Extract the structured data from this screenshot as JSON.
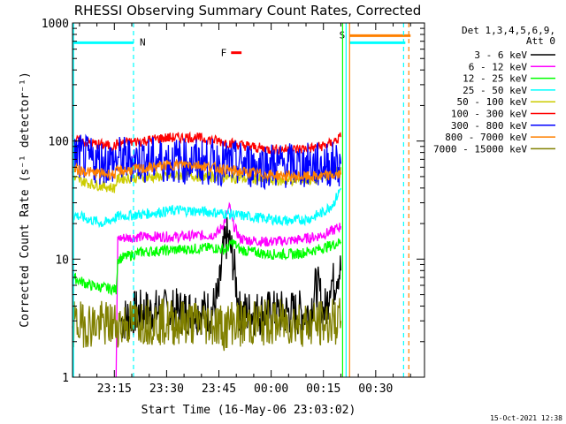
{
  "chart_data": {
    "type": "line",
    "title": "RHESSI Observing Summary Count Rates, Corrected",
    "xlabel": "Start Time (16-May-06 23:03:02)",
    "ylabel": "Corrected Count Rate (s⁻¹ detector⁻¹)",
    "y_scale": "log",
    "ylim": [
      1,
      1000
    ],
    "xlim_minutes_after_start": [
      0,
      101
    ],
    "x_ticks": [
      {
        "label": "23:15",
        "min": 12
      },
      {
        "label": "23:30",
        "min": 27
      },
      {
        "label": "23:45",
        "min": 42
      },
      {
        "label": "00:00",
        "min": 57
      },
      {
        "label": "00:15",
        "min": 72
      },
      {
        "label": "00:30",
        "min": 87
      }
    ],
    "y_ticks": [
      {
        "label": "1",
        "value": 1
      },
      {
        "label": "10",
        "value": 10
      },
      {
        "label": "100",
        "value": 100
      },
      {
        "label": "1000",
        "value": 1000
      }
    ],
    "legend_header": [
      "Det 1,3,4,5,6,9,",
      "Att 0"
    ],
    "series": [
      {
        "name": "3 - 6 keV",
        "color": "#000000",
        "x": [
          14,
          18,
          24,
          30,
          36,
          40,
          42,
          43,
          44,
          45,
          46,
          47,
          48,
          50,
          52,
          56,
          62,
          68,
          70,
          71,
          72,
          73,
          74,
          75,
          76,
          77
        ],
        "y": [
          3,
          3.5,
          3.6,
          3.6,
          3.6,
          3.6,
          5,
          10,
          15,
          14,
          10,
          6,
          3.5,
          3.5,
          3.5,
          3.5,
          3.5,
          3.5,
          6,
          5,
          3.5,
          4,
          7,
          6,
          8,
          8
        ]
      },
      {
        "name": "6 - 12 keV",
        "color": "#ff00ff",
        "x": [
          12.5,
          13,
          20,
          30,
          40,
          42,
          44,
          45,
          46,
          48,
          50,
          56,
          64,
          70,
          74,
          77
        ],
        "y": [
          1,
          15,
          15.5,
          15.5,
          16,
          17,
          22,
          28,
          20,
          15,
          14.5,
          14,
          14.5,
          15.5,
          17,
          19
        ]
      },
      {
        "name": "12 - 25 keV",
        "color": "#00ff00",
        "x": [
          0,
          5,
          12.5,
          13,
          20,
          30,
          40,
          44,
          46,
          48,
          56,
          64,
          70,
          74,
          77
        ],
        "y": [
          7,
          6,
          5.5,
          10,
          11.5,
          12,
          12.5,
          12,
          14,
          12,
          11,
          11,
          12,
          13,
          14
        ]
      },
      {
        "name": "25 - 50 keV",
        "color": "#00ffff",
        "x": [
          0,
          4,
          9,
          13,
          20,
          30,
          40,
          50,
          56,
          62,
          68,
          72,
          75,
          77
        ],
        "y": [
          24,
          22,
          20,
          23,
          24,
          26,
          25,
          23,
          22,
          21,
          22,
          25,
          30,
          40
        ]
      },
      {
        "name": "50 - 100 keV",
        "color": "#cccc00",
        "x": [
          0,
          6,
          12,
          13,
          20,
          30,
          40,
          50,
          60,
          70,
          77
        ],
        "y": [
          48,
          43,
          40,
          48,
          49,
          51,
          50,
          48,
          46,
          47,
          60
        ]
      },
      {
        "name": "100 - 300 keV",
        "color": "#ff0000",
        "x": [
          0,
          6,
          12,
          13,
          20,
          26,
          34,
          40,
          46,
          56,
          64,
          70,
          74,
          77
        ],
        "y": [
          102,
          95,
          90,
          95,
          100,
          106,
          108,
          102,
          95,
          85,
          85,
          88,
          95,
          108
        ]
      },
      {
        "name": "300 - 800 keV",
        "color": "#0000ff",
        "x": [
          0,
          6,
          12,
          13,
          20,
          30,
          40,
          50,
          60,
          70,
          77
        ],
        "y": [
          76,
          68,
          66,
          70,
          70,
          68,
          66,
          63,
          62,
          62,
          64
        ]
      },
      {
        "name": "800 - 7000 keV",
        "color": "#ff8000",
        "x": [
          0,
          6,
          12,
          13,
          20,
          26,
          34,
          40,
          46,
          56,
          64,
          70,
          77
        ],
        "y": [
          58,
          54,
          52,
          56,
          58,
          62,
          64,
          60,
          56,
          52,
          50,
          50,
          52
        ]
      },
      {
        "name": "7000 - 15000 keV",
        "color": "#808000",
        "x": [
          0,
          14,
          20,
          30,
          40,
          44,
          46,
          48,
          56,
          64,
          70,
          77
        ],
        "y": [
          2.8,
          2.8,
          3,
          2.9,
          2.9,
          2.6,
          3,
          2.8,
          2.9,
          2.9,
          2.8,
          3
        ]
      }
    ],
    "attenuator_band": {
      "label": "N",
      "color": "#00ffff",
      "x_start_min": 0,
      "x_end_min": 17.5,
      "level": 680
    },
    "saa_band": {
      "label": "S",
      "color": "#ff8000",
      "x_start_min": 79.5,
      "x_end_min": 97,
      "level": 780
    },
    "flare_marker": {
      "label": "F",
      "color": "#ff0000",
      "x_start_min": 45.5,
      "x_end_min": 48.5,
      "level": 560
    },
    "vertical_markers": [
      {
        "min": 17.5,
        "color": "#00ffff",
        "style": "dashed"
      },
      {
        "min": 77.5,
        "color": "#00ff00",
        "style": "solid"
      },
      {
        "min": 78.5,
        "color": "#00ffff",
        "style": "solid"
      },
      {
        "min": 79.5,
        "color": "#ff8000",
        "style": "solid"
      },
      {
        "min": 95,
        "color": "#00ffff",
        "style": "dashed"
      },
      {
        "min": 96.5,
        "color": "#ff8000",
        "style": "dashed"
      }
    ],
    "footer_date": "15-Oct-2021 12:38"
  }
}
